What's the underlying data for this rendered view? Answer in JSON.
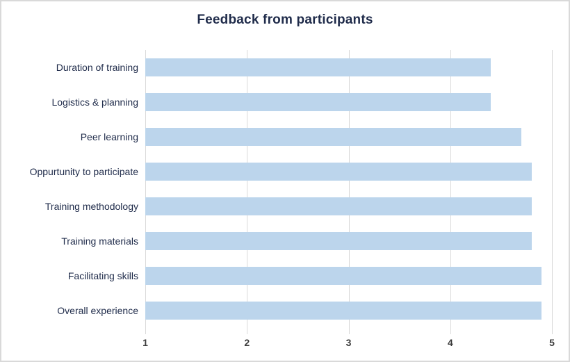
{
  "colors": {
    "background": "#ffffff",
    "card_border": "#d9d9d9",
    "title_text": "#1f2b4a",
    "category_label_text": "#1f2b4a",
    "tick_label_text": "#3c3c3c",
    "gridline": "#d9d9d9",
    "bar_fill": "#bcd5ec"
  },
  "chart_data": {
    "type": "bar",
    "orientation": "horizontal",
    "title": "Feedback from participants",
    "categories": [
      "Duration of training",
      "Logistics & planning",
      "Peer learning",
      "Oppurtunity to participate",
      "Training methodology",
      "Training materials",
      "Facilitating skills",
      "Overall experience"
    ],
    "values": [
      4.4,
      4.4,
      4.7,
      4.8,
      4.8,
      4.8,
      4.9,
      4.9
    ],
    "xlabel": "",
    "ylabel": "",
    "xlim": [
      1,
      5
    ],
    "x_ticks": [
      1,
      2,
      3,
      4,
      5
    ],
    "grid": "vertical-only",
    "legend": false,
    "data_labels": false
  }
}
